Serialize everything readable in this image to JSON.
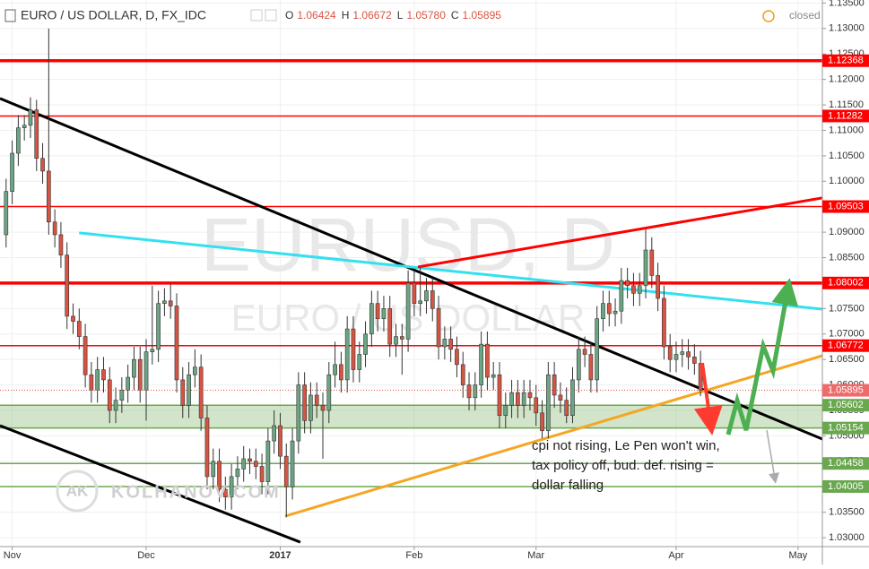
{
  "chart_data": {
    "type": "candlestick",
    "title": "EURO / US DOLLAR, D, FX_IDC",
    "legend": [
      {
        "key": "O",
        "value": "1.06424"
      },
      {
        "key": "H",
        "value": "1.06672"
      },
      {
        "key": "L",
        "value": "1.05780"
      },
      {
        "key": "C",
        "value": "1.05895"
      }
    ],
    "status": "closed",
    "watermark": "EURUSD, D",
    "watermark_subtitle": "EURO / US DOLLAR",
    "logo_initials": "AK",
    "logo_text": "KOLHANOV.COM",
    "annotation": [
      "cpi not rising, Le Pen won't win,",
      "tax policy off, bud. def. rising =",
      "dollar falling"
    ],
    "up_color": "#6ba583",
    "down_color": "#d75442",
    "xlim": [
      -1,
      134
    ],
    "xticks": [
      {
        "value": 1,
        "label": "Nov"
      },
      {
        "value": 23,
        "label": "Dec"
      },
      {
        "value": 45,
        "label": "2017"
      },
      {
        "value": 67,
        "label": "Feb"
      },
      {
        "value": 87,
        "label": "Mar"
      },
      {
        "value": 110,
        "label": "Apr"
      },
      {
        "value": 130,
        "label": "May"
      }
    ],
    "ylim": [
      1.0279,
      1.1356
    ],
    "yticks": [
      {
        "value": 1.03,
        "label": "1.03000"
      },
      {
        "value": 1.035,
        "label": "1.03500"
      },
      {
        "value": 1.04,
        "label": "1.04000"
      },
      {
        "value": 1.045,
        "label": "1.04500"
      },
      {
        "value": 1.05,
        "label": "1.05000"
      },
      {
        "value": 1.055,
        "label": "1.05500"
      },
      {
        "value": 1.06,
        "label": "1.06000"
      },
      {
        "value": 1.065,
        "label": "1.06500"
      },
      {
        "value": 1.07,
        "label": "1.07000"
      },
      {
        "value": 1.075,
        "label": "1.07500"
      },
      {
        "value": 1.08,
        "label": "1.08000"
      },
      {
        "value": 1.085,
        "label": "1.08500"
      },
      {
        "value": 1.09,
        "label": "1.09000"
      },
      {
        "value": 1.095,
        "label": "1.09500"
      },
      {
        "value": 1.1,
        "label": "1.10000"
      },
      {
        "value": 1.105,
        "label": "1.10500"
      },
      {
        "value": 1.11,
        "label": "1.11000"
      },
      {
        "value": 1.115,
        "label": "1.11500"
      },
      {
        "value": 1.12,
        "label": "1.12000"
      },
      {
        "value": 1.125,
        "label": "1.12500"
      },
      {
        "value": 1.13,
        "label": "1.13000"
      },
      {
        "value": 1.135,
        "label": "1.13500"
      }
    ],
    "grid": true,
    "zone": {
      "from": 1.05154,
      "to": 1.05602,
      "color": "#6aa84f"
    },
    "levels": [
      {
        "value": 1.12368,
        "label": "1.12368",
        "color": "#ff0000",
        "weight": "bold"
      },
      {
        "value": 1.11282,
        "label": "1.11282",
        "color": "#ff0000",
        "weight": "normal"
      },
      {
        "value": 1.09503,
        "label": "1.09503",
        "color": "#ff0000",
        "weight": "normal"
      },
      {
        "value": 1.08002,
        "label": "1.08002",
        "color": "#ff0000",
        "weight": "bold"
      },
      {
        "value": 1.06772,
        "label": "1.06772",
        "color": "#ff0000",
        "weight": "normal"
      },
      {
        "value": 1.05602,
        "label": "1.05602",
        "color": "#6aa84f",
        "weight": "normal"
      },
      {
        "value": 1.05154,
        "label": "1.05154",
        "color": "#6aa84f",
        "weight": "normal"
      },
      {
        "value": 1.04458,
        "label": "1.04458",
        "color": "#6aa84f",
        "weight": "normal"
      },
      {
        "value": 1.04005,
        "label": "1.04005",
        "color": "#6aa84f",
        "weight": "normal"
      }
    ],
    "trendlines": [
      {
        "color": "#000000",
        "points": [
          [
            -1,
            1.11627
          ],
          [
            134,
            1.04937
          ]
        ]
      },
      {
        "color": "#000000",
        "points": [
          [
            -1,
            1.05201
          ],
          [
            48.3,
            1.02912
          ]
        ]
      },
      {
        "color": "#33e0f0",
        "points": [
          [
            12,
            1.08986
          ],
          [
            134,
            1.07489
          ]
        ]
      },
      {
        "color": "#ff0000",
        "points": [
          [
            67.6,
            1.08317
          ],
          [
            134,
            1.09673
          ]
        ]
      },
      {
        "color": "#f5a623",
        "points": [
          [
            45.8,
            1.03423
          ],
          [
            134,
            1.06574
          ]
        ]
      }
    ],
    "ohlc": [
      [
        1.0895,
        1.1005,
        1.087,
        1.098
      ],
      [
        1.098,
        1.108,
        1.0955,
        1.1055
      ],
      [
        1.1055,
        1.113,
        1.103,
        1.1105
      ],
      [
        1.1105,
        1.113,
        1.108,
        1.111
      ],
      [
        1.111,
        1.1165,
        1.1085,
        1.114
      ],
      [
        1.114,
        1.116,
        1.102,
        1.1045
      ],
      [
        1.1045,
        1.1075,
        1.0995,
        1.102
      ],
      [
        1.102,
        1.13,
        1.0895,
        1.092
      ],
      [
        1.092,
        1.0945,
        1.087,
        1.0895
      ],
      [
        1.0895,
        1.092,
        1.083,
        1.0855
      ],
      [
        1.0855,
        1.088,
        1.071,
        1.0735
      ],
      [
        1.0735,
        1.076,
        1.07,
        1.0725
      ],
      [
        1.0725,
        1.075,
        1.067,
        1.0695
      ],
      [
        1.0695,
        1.072,
        1.0595,
        1.062
      ],
      [
        1.062,
        1.0645,
        1.0565,
        1.059
      ],
      [
        1.059,
        1.0655,
        1.0565,
        1.063
      ],
      [
        1.063,
        1.0655,
        1.0585,
        1.061
      ],
      [
        1.061,
        1.0635,
        1.0525,
        1.055
      ],
      [
        1.055,
        1.0595,
        1.0525,
        1.057
      ],
      [
        1.057,
        1.0615,
        1.0545,
        1.059
      ],
      [
        1.059,
        1.064,
        1.0565,
        1.0615
      ],
      [
        1.0615,
        1.0675,
        1.059,
        1.065
      ],
      [
        1.065,
        1.0675,
        1.0565,
        1.059
      ],
      [
        1.059,
        1.069,
        1.053,
        1.0665
      ],
      [
        1.0665,
        1.0795,
        1.064,
        1.067
      ],
      [
        1.067,
        1.0785,
        1.0645,
        1.076
      ],
      [
        1.076,
        1.079,
        1.0735,
        1.0765
      ],
      [
        1.0765,
        1.08,
        1.073,
        1.0755
      ],
      [
        1.0755,
        1.078,
        1.0585,
        1.061
      ],
      [
        1.061,
        1.0635,
        1.0535,
        1.056
      ],
      [
        1.056,
        1.0645,
        1.0535,
        1.062
      ],
      [
        1.062,
        1.067,
        1.0595,
        1.0635
      ],
      [
        1.0635,
        1.066,
        1.051,
        1.0535
      ],
      [
        1.0535,
        1.056,
        1.0395,
        1.042
      ],
      [
        1.042,
        1.0475,
        1.0395,
        1.045
      ],
      [
        1.045,
        1.0475,
        1.037,
        1.0395
      ],
      [
        1.0395,
        1.042,
        1.0355,
        1.038
      ],
      [
        1.038,
        1.0445,
        1.0355,
        1.042
      ],
      [
        1.042,
        1.046,
        1.0395,
        1.0435
      ],
      [
        1.0435,
        1.048,
        1.041,
        1.0455
      ],
      [
        1.0455,
        1.0475,
        1.0425,
        1.045
      ],
      [
        1.045,
        1.0475,
        1.0415,
        1.044
      ],
      [
        1.044,
        1.0465,
        1.0385,
        1.041
      ],
      [
        1.041,
        1.0515,
        1.0385,
        1.049
      ],
      [
        1.049,
        1.055,
        1.0465,
        1.052
      ],
      [
        1.052,
        1.0545,
        1.0435,
        1.046
      ],
      [
        1.046,
        1.0485,
        1.034,
        1.04
      ],
      [
        1.04,
        1.0515,
        1.0375,
        1.049
      ],
      [
        1.049,
        1.0625,
        1.0465,
        1.06
      ],
      [
        1.06,
        1.0625,
        1.0505,
        1.053
      ],
      [
        1.053,
        1.0605,
        1.0505,
        1.058
      ],
      [
        1.058,
        1.0605,
        1.0535,
        1.056
      ],
      [
        1.056,
        1.0585,
        1.0455,
        1.055
      ],
      [
        1.055,
        1.0645,
        1.0525,
        1.062
      ],
      [
        1.062,
        1.0685,
        1.0595,
        1.064
      ],
      [
        1.064,
        1.0665,
        1.0585,
        1.061
      ],
      [
        1.061,
        1.0735,
        1.0585,
        1.071
      ],
      [
        1.071,
        1.0735,
        1.0605,
        1.063
      ],
      [
        1.063,
        1.0685,
        1.0605,
        1.066
      ],
      [
        1.066,
        1.0725,
        1.0635,
        1.07
      ],
      [
        1.07,
        1.0785,
        1.0675,
        1.076
      ],
      [
        1.076,
        1.0785,
        1.0705,
        1.073
      ],
      [
        1.073,
        1.0775,
        1.0705,
        1.075
      ],
      [
        1.075,
        1.0775,
        1.0655,
        1.068
      ],
      [
        1.068,
        1.072,
        1.0655,
        1.0695
      ],
      [
        1.0695,
        1.072,
        1.062,
        1.069
      ],
      [
        1.069,
        1.0825,
        1.0665,
        1.08
      ],
      [
        1.08,
        1.0825,
        1.0735,
        1.076
      ],
      [
        1.076,
        1.083,
        1.0735,
        1.0765
      ],
      [
        1.0765,
        1.081,
        1.074,
        1.0785
      ],
      [
        1.0785,
        1.081,
        1.0725,
        1.075
      ],
      [
        1.075,
        1.0775,
        1.065,
        1.0675
      ],
      [
        1.0675,
        1.0715,
        1.065,
        1.069
      ],
      [
        1.069,
        1.0715,
        1.0645,
        1.067
      ],
      [
        1.067,
        1.0695,
        1.0615,
        1.064
      ],
      [
        1.064,
        1.0665,
        1.0575,
        1.06
      ],
      [
        1.06,
        1.0625,
        1.055,
        1.0575
      ],
      [
        1.0575,
        1.0625,
        1.055,
        1.06
      ],
      [
        1.06,
        1.0705,
        1.0575,
        1.068
      ],
      [
        1.068,
        1.0705,
        1.059,
        1.0615
      ],
      [
        1.0615,
        1.0645,
        1.059,
        1.062
      ],
      [
        1.062,
        1.0645,
        1.0515,
        1.054
      ],
      [
        1.054,
        1.0585,
        1.0515,
        1.056
      ],
      [
        1.056,
        1.061,
        1.0535,
        1.0585
      ],
      [
        1.0585,
        1.061,
        1.0535,
        1.056
      ],
      [
        1.056,
        1.061,
        1.0535,
        1.0585
      ],
      [
        1.0585,
        1.061,
        1.055,
        1.0575
      ],
      [
        1.0575,
        1.06,
        1.052,
        1.0545
      ],
      [
        1.0545,
        1.057,
        1.0495,
        1.051
      ],
      [
        1.051,
        1.0645,
        1.0495,
        1.062
      ],
      [
        1.062,
        1.0645,
        1.0555,
        1.058
      ],
      [
        1.058,
        1.0605,
        1.0545,
        1.057
      ],
      [
        1.057,
        1.0595,
        1.0525,
        1.054
      ],
      [
        1.054,
        1.0635,
        1.0525,
        1.061
      ],
      [
        1.061,
        1.0695,
        1.0585,
        1.067
      ],
      [
        1.067,
        1.0695,
        1.0635,
        1.066
      ],
      [
        1.066,
        1.0685,
        1.0585,
        1.061
      ],
      [
        1.061,
        1.0755,
        1.0585,
        1.073
      ],
      [
        1.073,
        1.0785,
        1.0705,
        1.076
      ],
      [
        1.076,
        1.0785,
        1.0715,
        1.074
      ],
      [
        1.074,
        1.077,
        1.0715,
        1.0745
      ],
      [
        1.0745,
        1.083,
        1.072,
        1.0805
      ],
      [
        1.0805,
        1.083,
        1.077,
        1.0795
      ],
      [
        1.0795,
        1.082,
        1.0755,
        1.078
      ],
      [
        1.078,
        1.082,
        1.0755,
        1.0795
      ],
      [
        1.0795,
        1.0905,
        1.077,
        1.0865
      ],
      [
        1.0865,
        1.089,
        1.079,
        1.0815
      ],
      [
        1.0815,
        1.084,
        1.0745,
        1.077
      ],
      [
        1.077,
        1.0795,
        1.065,
        1.0675
      ],
      [
        1.0675,
        1.07,
        1.0625,
        1.065
      ],
      [
        1.065,
        1.0685,
        1.0625,
        1.066
      ],
      [
        1.066,
        1.069,
        1.0635,
        1.0665
      ],
      [
        1.0665,
        1.069,
        1.063,
        1.0655
      ],
      [
        1.0655,
        1.068,
        1.062,
        1.06424
      ],
      [
        1.06424,
        1.06672,
        1.0578,
        1.05895
      ]
    ]
  }
}
